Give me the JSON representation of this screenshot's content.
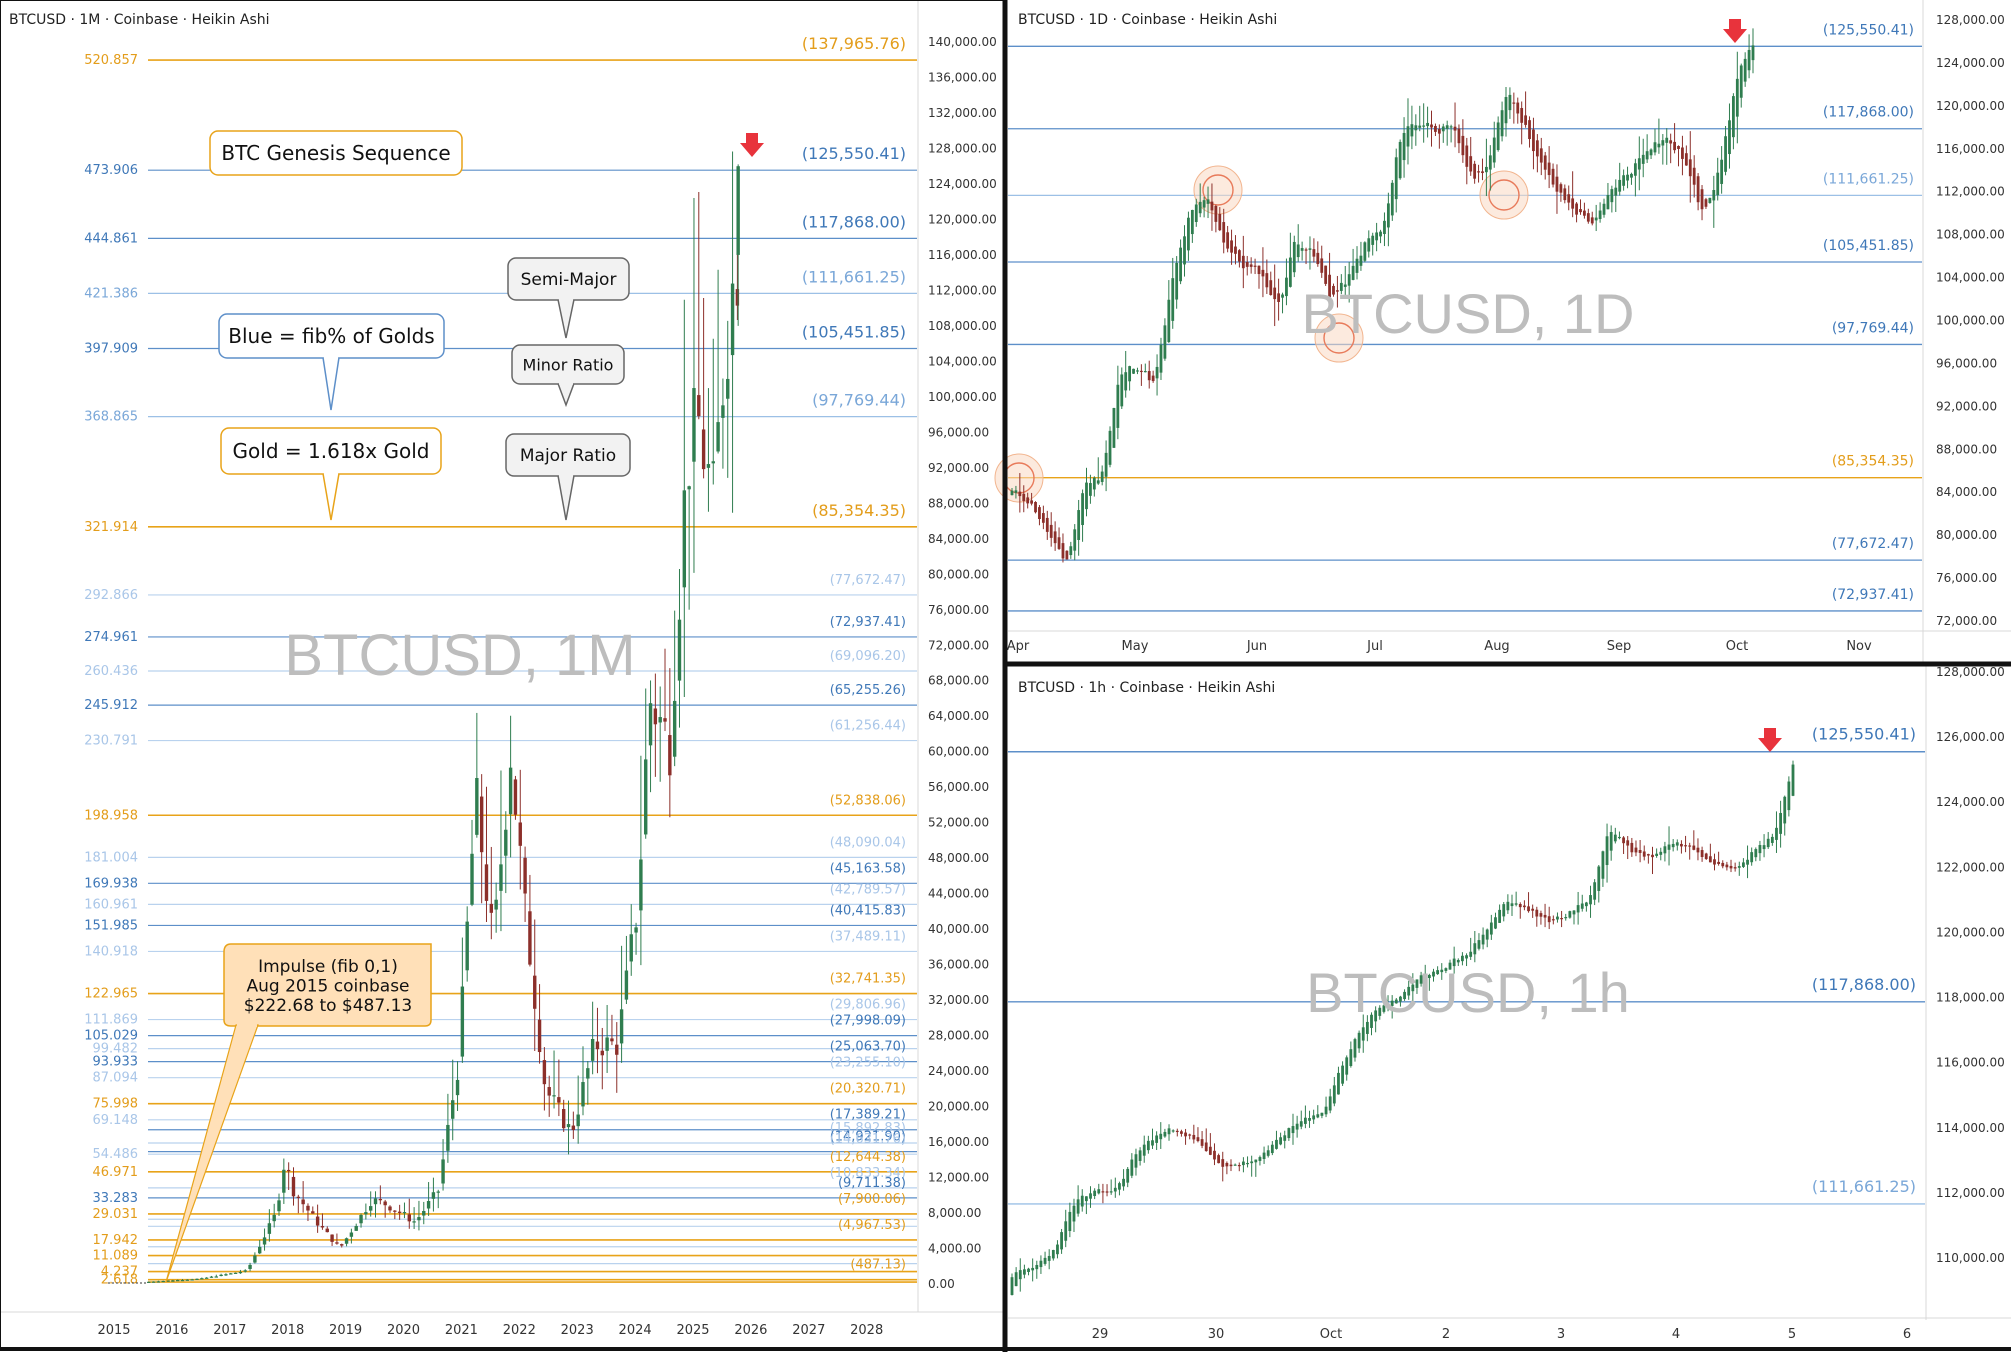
{
  "colors": {
    "gold": "#e8a319",
    "gold_text": "#e39d1b",
    "blue": "#5d8fc9",
    "blue_text": "#3f78b8",
    "blue_light": "#9cc0e6",
    "blue_pale": "#b9d2ee",
    "up": "#2f7d4f",
    "down": "#8c2f2a",
    "arrow": "#e8333c",
    "grid_text": "#333333",
    "watermark": "#bdbdbd"
  },
  "chart_data": [
    {
      "id": "monthly",
      "type": "candlestick",
      "header": "BTCUSD · 1M · Coinbase · Heikin Ashi",
      "watermark": "BTCUSD, 1M",
      "ylim": [
        0,
        141000
      ],
      "y_ticks": [
        "140,000.00",
        "136,000.00",
        "132,000.00",
        "128,000.00",
        "124,000.00",
        "120,000.00",
        "116,000.00",
        "112,000.00",
        "108,000.00",
        "104,000.00",
        "100,000.00",
        "96,000.00",
        "92,000.00",
        "88,000.00",
        "84,000.00",
        "80,000.00",
        "76,000.00",
        "72,000.00",
        "68,000.00",
        "64,000.00",
        "60,000.00",
        "56,000.00",
        "52,000.00",
        "48,000.00",
        "44,000.00",
        "40,000.00",
        "36,000.00",
        "32,000.00",
        "28,000.00",
        "24,000.00",
        "20,000.00",
        "16,000.00",
        "12,000.00",
        "8,000.00",
        "4,000.00",
        "0.00"
      ],
      "x_ticks": [
        "2015",
        "2016",
        "2017",
        "2018",
        "2019",
        "2020",
        "2021",
        "2022",
        "2023",
        "2024",
        "2025",
        "2026",
        "2027",
        "2028"
      ],
      "levels": [
        {
          "ratio": "520.857",
          "price": "(137,965.76)",
          "value": 137965.76,
          "kind": "gold"
        },
        {
          "ratio": "473.906",
          "price": "(125,550.41)",
          "value": 125550.41,
          "kind": "blue"
        },
        {
          "ratio": "444.861",
          "price": "(117,868.00)",
          "value": 117868.0,
          "kind": "blue"
        },
        {
          "ratio": "421.386",
          "price": "(111,661.25)",
          "value": 111661.25,
          "kind": "light"
        },
        {
          "ratio": "397.909",
          "price": "(105,451.85)",
          "value": 105451.85,
          "kind": "blue"
        },
        {
          "ratio": "368.865",
          "price": "(97,769.44)",
          "value": 97769.44,
          "kind": "light"
        },
        {
          "ratio": "321.914",
          "price": "(85,354.35)",
          "value": 85354.35,
          "kind": "gold"
        },
        {
          "ratio": "292.866",
          "price": "(77,672.47)",
          "value": 77672.47,
          "kind": "pale"
        },
        {
          "ratio": "274.961",
          "price": "(72,937.41)",
          "value": 72937.41,
          "kind": "blue"
        },
        {
          "ratio": "260.436",
          "price": "(69,096.20)",
          "value": 69096.2,
          "kind": "pale"
        },
        {
          "ratio": "245.912",
          "price": "(65,255.26)",
          "value": 65255.26,
          "kind": "blue"
        },
        {
          "ratio": "230.791",
          "price": "(61,256.44)",
          "value": 61256.44,
          "kind": "pale"
        },
        {
          "ratio": "198.958",
          "price": "(52,838.06)",
          "value": 52838.06,
          "kind": "gold"
        },
        {
          "ratio": "181.004",
          "price": "(48,090.04)",
          "value": 48090.04,
          "kind": "pale"
        },
        {
          "ratio": "169.938",
          "price": "(45,163.58)",
          "value": 45163.58,
          "kind": "blue"
        },
        {
          "ratio": "160.961",
          "price": "(42,789.57)",
          "value": 42789.57,
          "kind": "pale"
        },
        {
          "ratio": "151.985",
          "price": "(40,415.83)",
          "value": 40415.83,
          "kind": "blue"
        },
        {
          "ratio": "140.918",
          "price": "(37,489.11)",
          "value": 37489.11,
          "kind": "pale"
        },
        {
          "ratio": "122.965",
          "price": "(32,741.35)",
          "value": 32741.35,
          "kind": "gold"
        },
        {
          "ratio": "111.869",
          "price": "(29,806.96)",
          "value": 29806.96,
          "kind": "pale"
        },
        {
          "ratio": "105.029",
          "price": "(27,998.09)",
          "value": 27998.09,
          "kind": "blue"
        },
        {
          "ratio": "99.482",
          "price": "",
          "value": 26531,
          "kind": "pale"
        },
        {
          "ratio": "93.933",
          "price": "(25,063.70)",
          "value": 25063.7,
          "kind": "blue"
        },
        {
          "ratio": "87.094",
          "price": "(23,255.10)",
          "value": 23255.1,
          "kind": "pale"
        },
        {
          "ratio": "75.998",
          "price": "(20,320.71)",
          "value": 20320.71,
          "kind": "gold"
        },
        {
          "ratio": "69.148",
          "price": "",
          "value": 18510,
          "kind": "pale"
        },
        {
          "ratio": "",
          "price": "(17,389.21)",
          "value": 17389.21,
          "kind": "blue"
        },
        {
          "ratio": "",
          "price": "(15,892.83)",
          "value": 15892.83,
          "kind": "pale"
        },
        {
          "ratio": "",
          "price": "(14,921.90)",
          "value": 14921.9,
          "kind": "blue"
        },
        {
          "ratio": "54.486",
          "price": "(14,631.76)",
          "value": 14631.76,
          "kind": "pale"
        },
        {
          "ratio": "46.971",
          "price": "(12,644.38)",
          "value": 12644.38,
          "kind": "gold"
        },
        {
          "ratio": "",
          "price": "(10,833.34)",
          "value": 10833.34,
          "kind": "pale"
        },
        {
          "ratio": "33.283",
          "price": "(9,711.38)",
          "value": 9711.38,
          "kind": "blue"
        },
        {
          "ratio": "29.031",
          "price": "(7,900.06)",
          "value": 7900.06,
          "kind": "gold"
        },
        {
          "ratio": "",
          "price": "",
          "value": 7300,
          "kind": "pale"
        },
        {
          "ratio": "",
          "price": "",
          "value": 6500,
          "kind": "pale"
        },
        {
          "ratio": "17.942",
          "price": "(4,967.53)",
          "value": 4967.53,
          "kind": "gold"
        },
        {
          "ratio": "",
          "price": "",
          "value": 4200,
          "kind": "pale"
        },
        {
          "ratio": "11.089",
          "price": "",
          "value": 3200,
          "kind": "gold"
        },
        {
          "ratio": "",
          "price": "",
          "value": 2300,
          "kind": "pale"
        },
        {
          "ratio": "4.237",
          "price": "",
          "value": 1400,
          "kind": "gold"
        },
        {
          "ratio": "2.618",
          "price": "(487.13)",
          "value": 487.13,
          "kind": "gold"
        },
        {
          "ratio": "",
          "price": "",
          "value": 222.68,
          "kind": "gold"
        }
      ],
      "callouts": [
        {
          "id": "genesis",
          "text": "BTC Genesis Sequence",
          "style": "gold"
        },
        {
          "id": "blue",
          "text": "Blue = fib% of Golds",
          "style": "blue"
        },
        {
          "id": "gold",
          "text": "Gold = 1.618x Gold",
          "style": "gold"
        },
        {
          "id": "semi",
          "text": "Semi-Major",
          "style": "grey"
        },
        {
          "id": "minor",
          "text": "Minor Ratio",
          "style": "grey"
        },
        {
          "id": "major",
          "text": "Major Ratio",
          "style": "grey"
        }
      ],
      "impulse_note": [
        "Impulse (fib 0,1)",
        "Aug 2015 coinbase",
        "$222.68 to $487.13"
      ]
    },
    {
      "id": "daily",
      "type": "candlestick",
      "header": "BTCUSD · 1D · Coinbase · Heikin Ashi",
      "watermark": "BTCUSD, 1D",
      "ylim": [
        71500,
        128500
      ],
      "y_ticks": [
        "128,000.00",
        "124,000.00",
        "120,000.00",
        "116,000.00",
        "112,000.00",
        "108,000.00",
        "104,000.00",
        "100,000.00",
        "96,000.00",
        "92,000.00",
        "88,000.00",
        "84,000.00",
        "80,000.00",
        "76,000.00",
        "72,000.00"
      ],
      "x_ticks": [
        "Apr",
        "May",
        "Jun",
        "Jul",
        "Aug",
        "Sep",
        "Oct",
        "Nov"
      ],
      "levels": [
        {
          "price": "(125,550.41)",
          "value": 125550.41,
          "kind": "blue"
        },
        {
          "price": "(117,868.00)",
          "value": 117868.0,
          "kind": "blue"
        },
        {
          "price": "(111,661.25)",
          "value": 111661.25,
          "kind": "light"
        },
        {
          "price": "(105,451.85)",
          "value": 105451.85,
          "kind": "blue"
        },
        {
          "price": "(97,769.44)",
          "value": 97769.44,
          "kind": "blue"
        },
        {
          "price": "(85,354.35)",
          "value": 85354.35,
          "kind": "gold"
        },
        {
          "price": "(77,672.47)",
          "value": 77672.47,
          "kind": "blue"
        },
        {
          "price": "(72,937.41)",
          "value": 72937.41,
          "kind": "blue"
        }
      ]
    },
    {
      "id": "hourly",
      "type": "candlestick",
      "header": "BTCUSD · 1h · Coinbase · Heikin Ashi",
      "watermark": "BTCUSD, 1h",
      "ylim": [
        108500,
        128000
      ],
      "y_ticks": [
        "128,000.00",
        "126,000.00",
        "124,000.00",
        "122,000.00",
        "120,000.00",
        "118,000.00",
        "116,000.00",
        "114,000.00",
        "112,000.00",
        "110,000.00"
      ],
      "x_ticks": [
        "29",
        "30",
        "Oct",
        "2",
        "3",
        "4",
        "5",
        "6"
      ],
      "levels": [
        {
          "price": "(125,550.41)",
          "value": 125550.41,
          "kind": "blue"
        },
        {
          "price": "(117,868.00)",
          "value": 117868.0,
          "kind": "blue"
        },
        {
          "price": "(111,661.25)",
          "value": 111661.25,
          "kind": "light"
        }
      ]
    }
  ]
}
